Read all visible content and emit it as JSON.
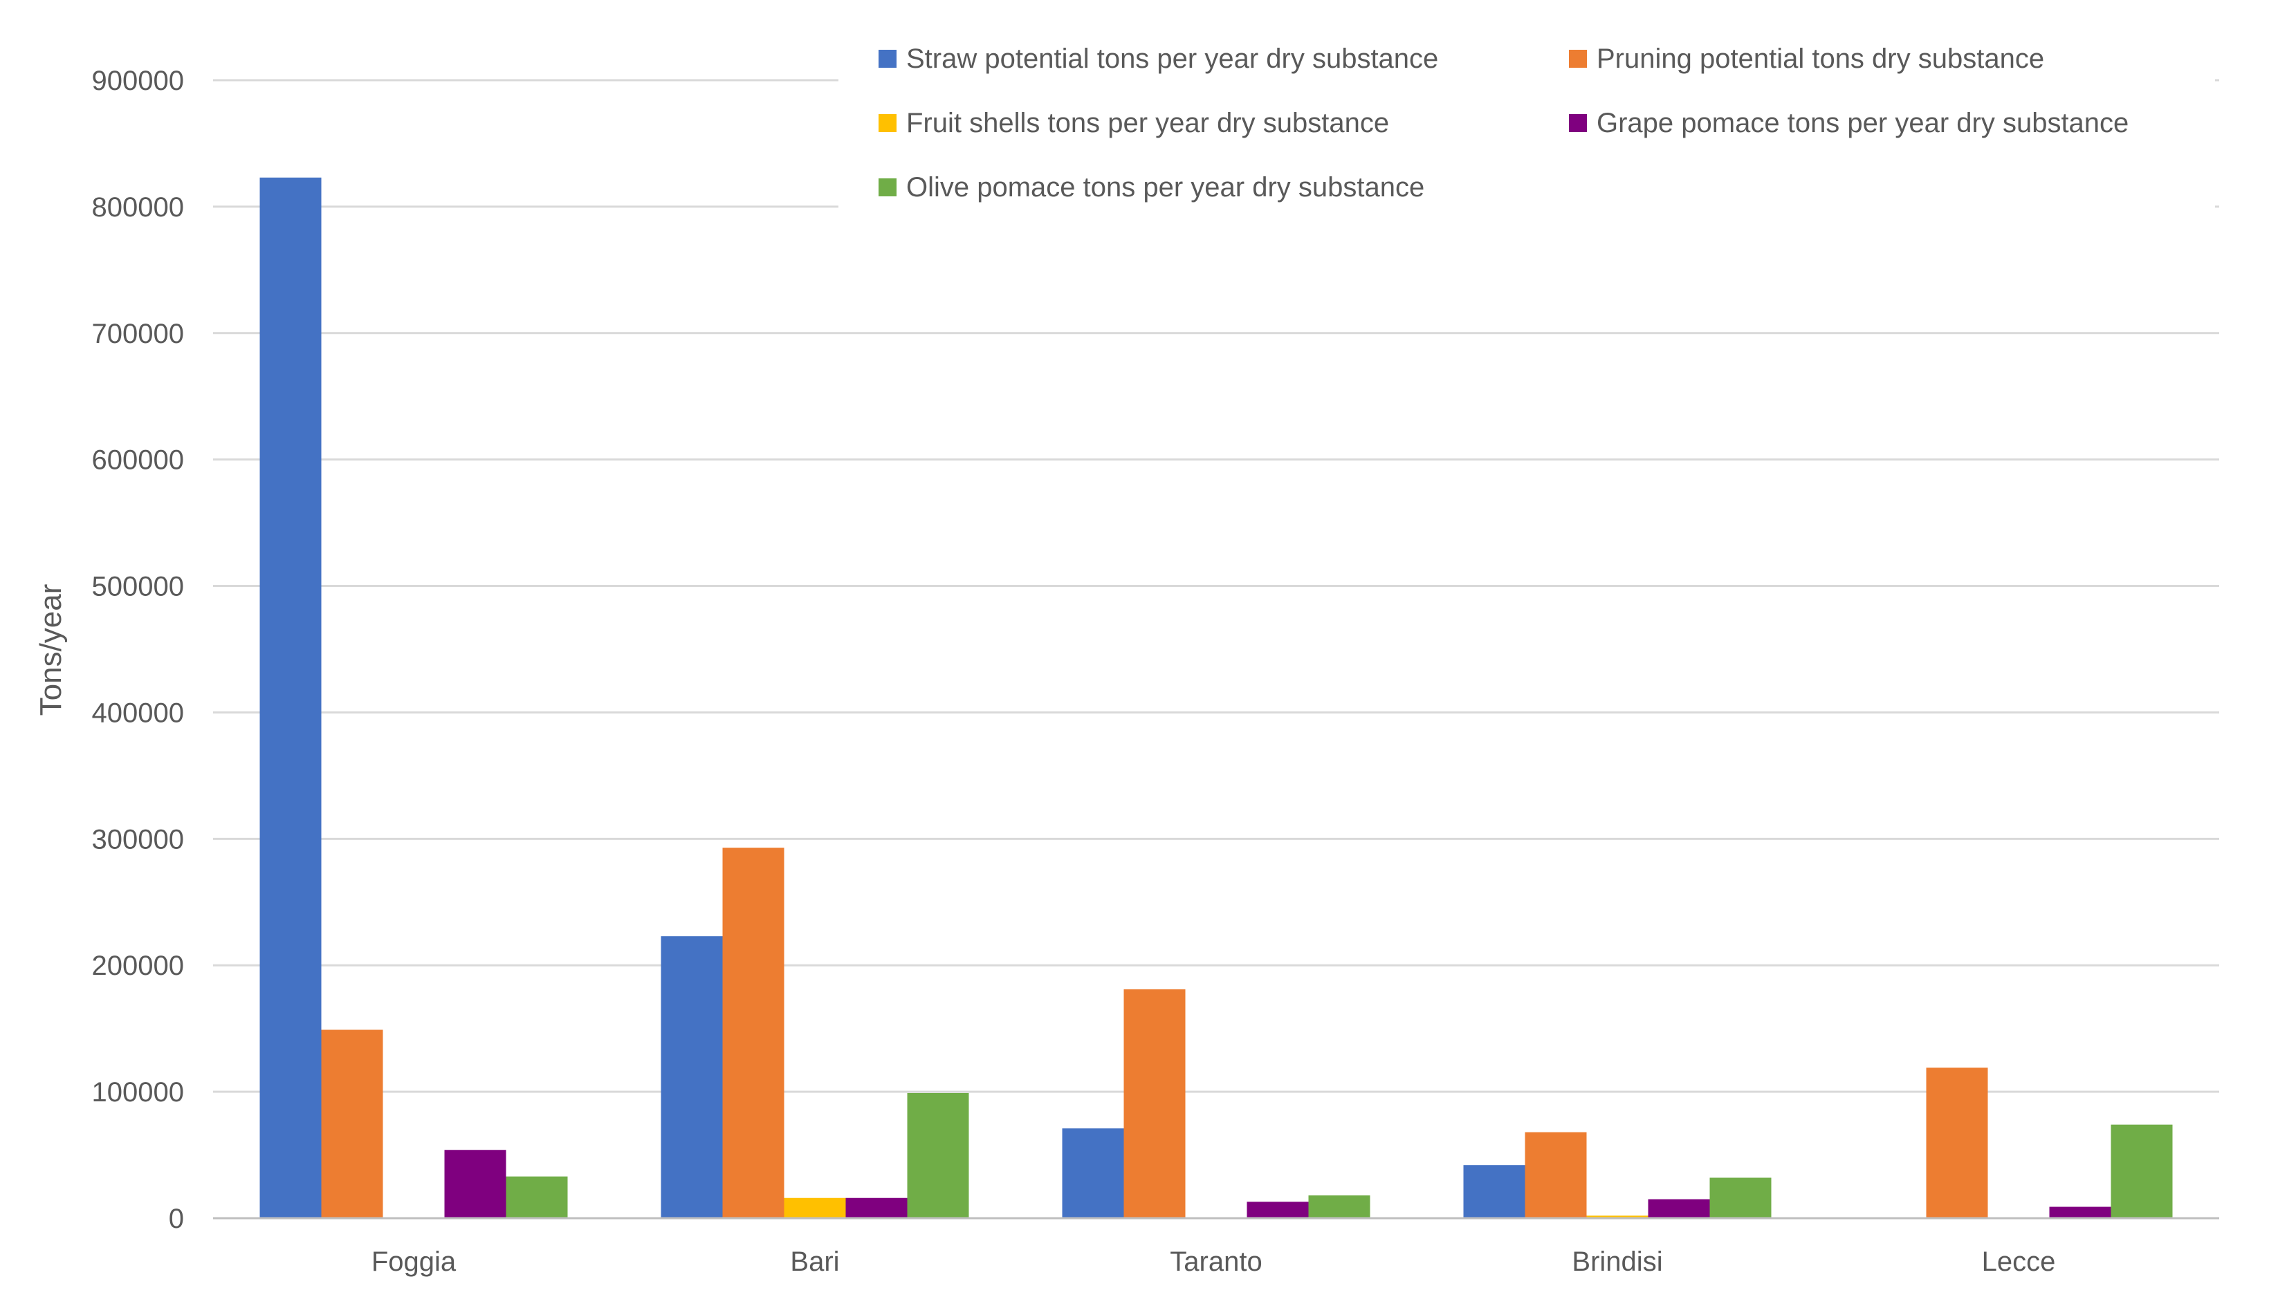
{
  "chart_data": {
    "type": "bar",
    "title": "",
    "xlabel": "",
    "ylabel": "Tons/year",
    "ylim": [
      0,
      900000
    ],
    "yticks": [
      0,
      100000,
      200000,
      300000,
      400000,
      500000,
      600000,
      700000,
      800000,
      900000
    ],
    "ytick_labels": [
      "0",
      "100000",
      "200000",
      "300000",
      "400000",
      "500000",
      "600000",
      "700000",
      "800000",
      "900000"
    ],
    "grid": true,
    "legend_position": "top-right",
    "categories": [
      "Foggia",
      "Bari",
      "Taranto",
      "Brindisi",
      "Lecce"
    ],
    "series": [
      {
        "name": "Straw potential tons per year dry substance",
        "color": "#4472c4",
        "values": [
          823000,
          223000,
          71000,
          42000,
          0
        ]
      },
      {
        "name": "Pruning potential tons dry substance",
        "color": "#ed7d31",
        "values": [
          149000,
          293000,
          181000,
          68000,
          119000
        ]
      },
      {
        "name": "Fruit shells tons per year dry substance",
        "color": "#ffc000",
        "values": [
          0,
          16000,
          0,
          2000,
          0
        ]
      },
      {
        "name": "Grape pomace tons per year dry substance",
        "color": "#7f007f",
        "values": [
          54000,
          16000,
          13000,
          15000,
          9000
        ]
      },
      {
        "name": "Olive pomace tons per year dry substance",
        "color": "#70ad47",
        "values": [
          33000,
          99000,
          18000,
          32000,
          74000
        ]
      }
    ]
  }
}
